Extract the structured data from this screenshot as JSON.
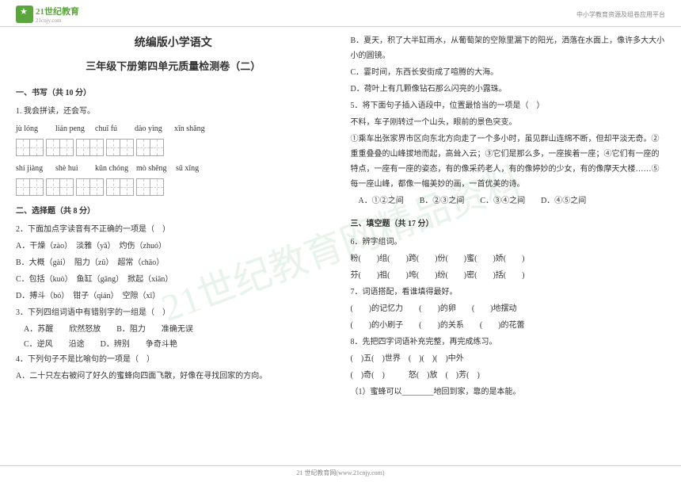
{
  "header": {
    "logo_text": "21世纪教育",
    "logo_sub": "21cnjy.com",
    "right_text": "中小学教育资源及组卷应用平台"
  },
  "watermark": "21世纪教育网精品资料",
  "title": {
    "main": "统编版小学语文",
    "sub": "三年级下册第四单元质量检测卷（二）"
  },
  "section1": {
    "head": "一、书写（共 10 分）",
    "q1": "1. 我会拼读，还会写。",
    "pinyin_row1": [
      "jù lóng",
      "lián peng",
      "chuī fú",
      "dào yìng",
      "xīn shǎng"
    ],
    "pinyin_row2": [
      "shí jiàng",
      "shè huì",
      "kūn chóng",
      "mò shēng",
      "sū xǐng"
    ]
  },
  "section2": {
    "head": "二、选择题（共 8 分）",
    "q2": "2．下面加点字读音有不正确的一项是（　）",
    "q2a": "A．干燥（zào）　淡雅（yǎ）　灼伤（zhuó）",
    "q2b": "B．大概（gài）　阻力（zǔ）　超常（chāo）",
    "q2c": "C．包括（kuò）　鱼缸（gāng）　掀起（xiān）",
    "q2d": "D．搏斗（bó）　钳子（qián）　空隙（xī）",
    "q3": "3．下列四组词语中有错别字的一组是（　）",
    "q3a": "A．苏醒　　欣然怒放",
    "q3b": "B．阻力　　准确无误",
    "q3c": "C．逆风　　沿途",
    "q3d": "D．辨别　　争奇斗艳",
    "q4": "4．下列句子不是比喻句的一项是（　）",
    "q4a": "A．二十只左右被闷了好久的蜜蜂向四面飞散，好像在寻找回家的方向。"
  },
  "col2": {
    "q4b": "B．夏天，积了大半缸雨水，从葡萄架的空隙里漏下的阳光，洒落在水面上，像许多大大小小的圆镜。",
    "q4c": "C．霎时间，东西长安街成了喧腾的大海。",
    "q4d": "D．荷叶上有几颗像钻石那么闪亮的小露珠。",
    "q5": "5．将下面句子插入语段中，位置最恰当的一项是（　）",
    "q5_text1": "不料，车子刚转过一个山头，眼前的景色突变。",
    "q5_text2": "①乘车出张家界市区向东北方向走了一个多小时，虽见群山连绵不断，但却平淡无奇。②重重叠叠的山峰拔地而起，高耸入云；③它们是那么多，一座挨着一座；④它们有一座的特点，一座有一座的姿态，有的像采药老人，有的像婷妙的少女，有的像摩天大楼……⑤每一座山峰，都像一幅美妙的画，一首优美的诗。",
    "q5a": "A．①②之间",
    "q5b": "B．②③之间",
    "q5c": "C．③④之间",
    "q5d": "D．④⑤之间"
  },
  "section3": {
    "head": "三、填空题（共 17 分）",
    "q6": "6．辨字组词。",
    "q6_row1": "粉(　　)组(　　)跨(　　)份(　　)蜜(　　)娇(　　)",
    "q6_row2": "芬(　　)祖(　　)垮(　　)纷(　　)密(　　)括(　　)",
    "q7": "7．词语搭配，看谁填得最好。",
    "q7_row1": "(　　)的记忆力　　(　　)的卵　　(　　)地摆动",
    "q7_row2": "(　　)的小刷子　　(　　)的关系　　(　　)的花蕾",
    "q8": "8．先把四字词语补充完整，再完成练习。",
    "q8_row1": "(　)五(　)世界　(　)(　)(　)中外",
    "q8_row2": "(　)奇(　)　　　怒(　)放　(　)芳(　)",
    "q8_sub": "（1）蜜蜂可以________地回到家，靠的是本能。"
  },
  "footer": "21 世纪教育网(www.21cnjy.com)"
}
